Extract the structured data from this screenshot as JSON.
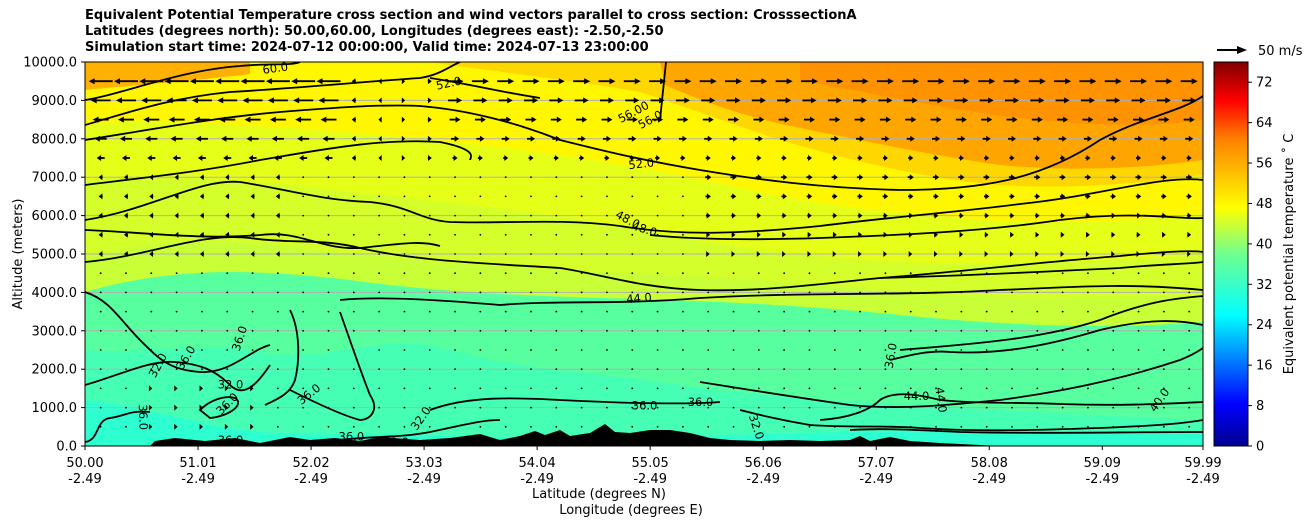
{
  "title_lines": [
    "Equivalent Potential Temperature cross section and wind vectors parallel to cross section: CrosssectionA",
    "Latitudes (degrees north): 50.00,60.00, Longitudes (degrees east): -2.50,-2.50",
    "Simulation start time: 2024-07-12 00:00:00, Valid time: 2024-07-13 23:00:00"
  ],
  "chart_data": {
    "type": "heatmap",
    "title": "Equivalent Potential Temperature cross section and wind vectors parallel to cross section: CrosssectionA",
    "ylabel": "Altitude (meters)",
    "xlabel_lines": [
      "Latitude (degrees N)",
      "Longitude (degrees E)"
    ],
    "ylim": [
      0,
      10000
    ],
    "y_ticks": [
      0,
      1000,
      2000,
      3000,
      4000,
      5000,
      6000,
      7000,
      8000,
      9000,
      10000
    ],
    "y_tick_labels": [
      "0.0",
      "1000.0",
      "2000.0",
      "3000.0",
      "4000.0",
      "5000.0",
      "6000.0",
      "7000.0",
      "8000.0",
      "9000.0",
      "10000.0"
    ],
    "x_ticks": [
      {
        "lat": "50.00",
        "lon": "-2.49"
      },
      {
        "lat": "51.01",
        "lon": "-2.49"
      },
      {
        "lat": "52.02",
        "lon": "-2.49"
      },
      {
        "lat": "53.03",
        "lon": "-2.49"
      },
      {
        "lat": "54.04",
        "lon": "-2.49"
      },
      {
        "lat": "55.05",
        "lon": "-2.49"
      },
      {
        "lat": "56.06",
        "lon": "-2.49"
      },
      {
        "lat": "57.07",
        "lon": "-2.49"
      },
      {
        "lat": "58.08",
        "lon": "-2.49"
      },
      {
        "lat": "59.09",
        "lon": "-2.49"
      },
      {
        "lat": "59.99",
        "lon": "-2.49"
      }
    ],
    "colorbar": {
      "label": "Equivalent potential temperature ˚ C",
      "range": [
        0,
        76
      ],
      "ticks": [
        "0",
        "8",
        "16",
        "24",
        "32",
        "40",
        "48",
        "56",
        "64",
        "72"
      ],
      "colormap": "jet"
    },
    "wind_reference": {
      "label": "50 m/s",
      "value": 50
    },
    "contour_labels": [
      {
        "text": "60.0",
        "lat": 51.7,
        "alt": 9840,
        "rot": -8
      },
      {
        "text": "52.0",
        "lat": 53.25,
        "alt": 9450,
        "rot": -12
      },
      {
        "text": "56.00",
        "lat": 54.9,
        "alt": 8700,
        "rot": -28
      },
      {
        "text": "56.0",
        "lat": 55.05,
        "alt": 8500,
        "rot": -28
      },
      {
        "text": "52.0",
        "lat": 54.97,
        "alt": 7350,
        "rot": -6
      },
      {
        "text": "48.0",
        "lat": 54.85,
        "alt": 5900,
        "rot": 28
      },
      {
        "text": "48.0",
        "lat": 55.0,
        "alt": 5650,
        "rot": 18
      },
      {
        "text": "44.0",
        "lat": 54.95,
        "alt": 3850,
        "rot": -5
      },
      {
        "text": "32.0",
        "lat": 50.65,
        "alt": 2100,
        "rot": -62
      },
      {
        "text": "36.0",
        "lat": 50.9,
        "alt": 2300,
        "rot": -58
      },
      {
        "text": "36.0",
        "lat": 51.38,
        "alt": 2800,
        "rot": -72
      },
      {
        "text": "32.0",
        "lat": 51.3,
        "alt": 1600,
        "rot": 0
      },
      {
        "text": "36.0",
        "lat": 51.27,
        "alt": 1100,
        "rot": -45
      },
      {
        "text": "36.0",
        "lat": 50.52,
        "alt": 750,
        "rot": 88
      },
      {
        "text": "36.0",
        "lat": 52.0,
        "alt": 1350,
        "rot": -38
      },
      {
        "text": "36.0",
        "lat": 51.3,
        "alt": 150,
        "rot": 0
      },
      {
        "text": "36.0",
        "lat": 52.38,
        "alt": 250,
        "rot": 0
      },
      {
        "text": "32.0",
        "lat": 53.0,
        "alt": 720,
        "rot": -55
      },
      {
        "text": "32.0",
        "lat": 52.78,
        "alt": 110,
        "rot": 0
      },
      {
        "text": "36.0",
        "lat": 55.0,
        "alt": 1050,
        "rot": 0
      },
      {
        "text": "36.0",
        "lat": 55.5,
        "alt": 1150,
        "rot": 0
      },
      {
        "text": "32.0",
        "lat": 56.0,
        "alt": 500,
        "rot": 72
      },
      {
        "text": "36.0",
        "lat": 57.2,
        "alt": 2350,
        "rot": -80
      },
      {
        "text": "44.0",
        "lat": 57.43,
        "alt": 1300,
        "rot": 0
      },
      {
        "text": "44.0",
        "lat": 57.65,
        "alt": 1200,
        "rot": 82
      },
      {
        "text": "40.0",
        "lat": 59.6,
        "alt": 1200,
        "rot": -55
      }
    ]
  }
}
